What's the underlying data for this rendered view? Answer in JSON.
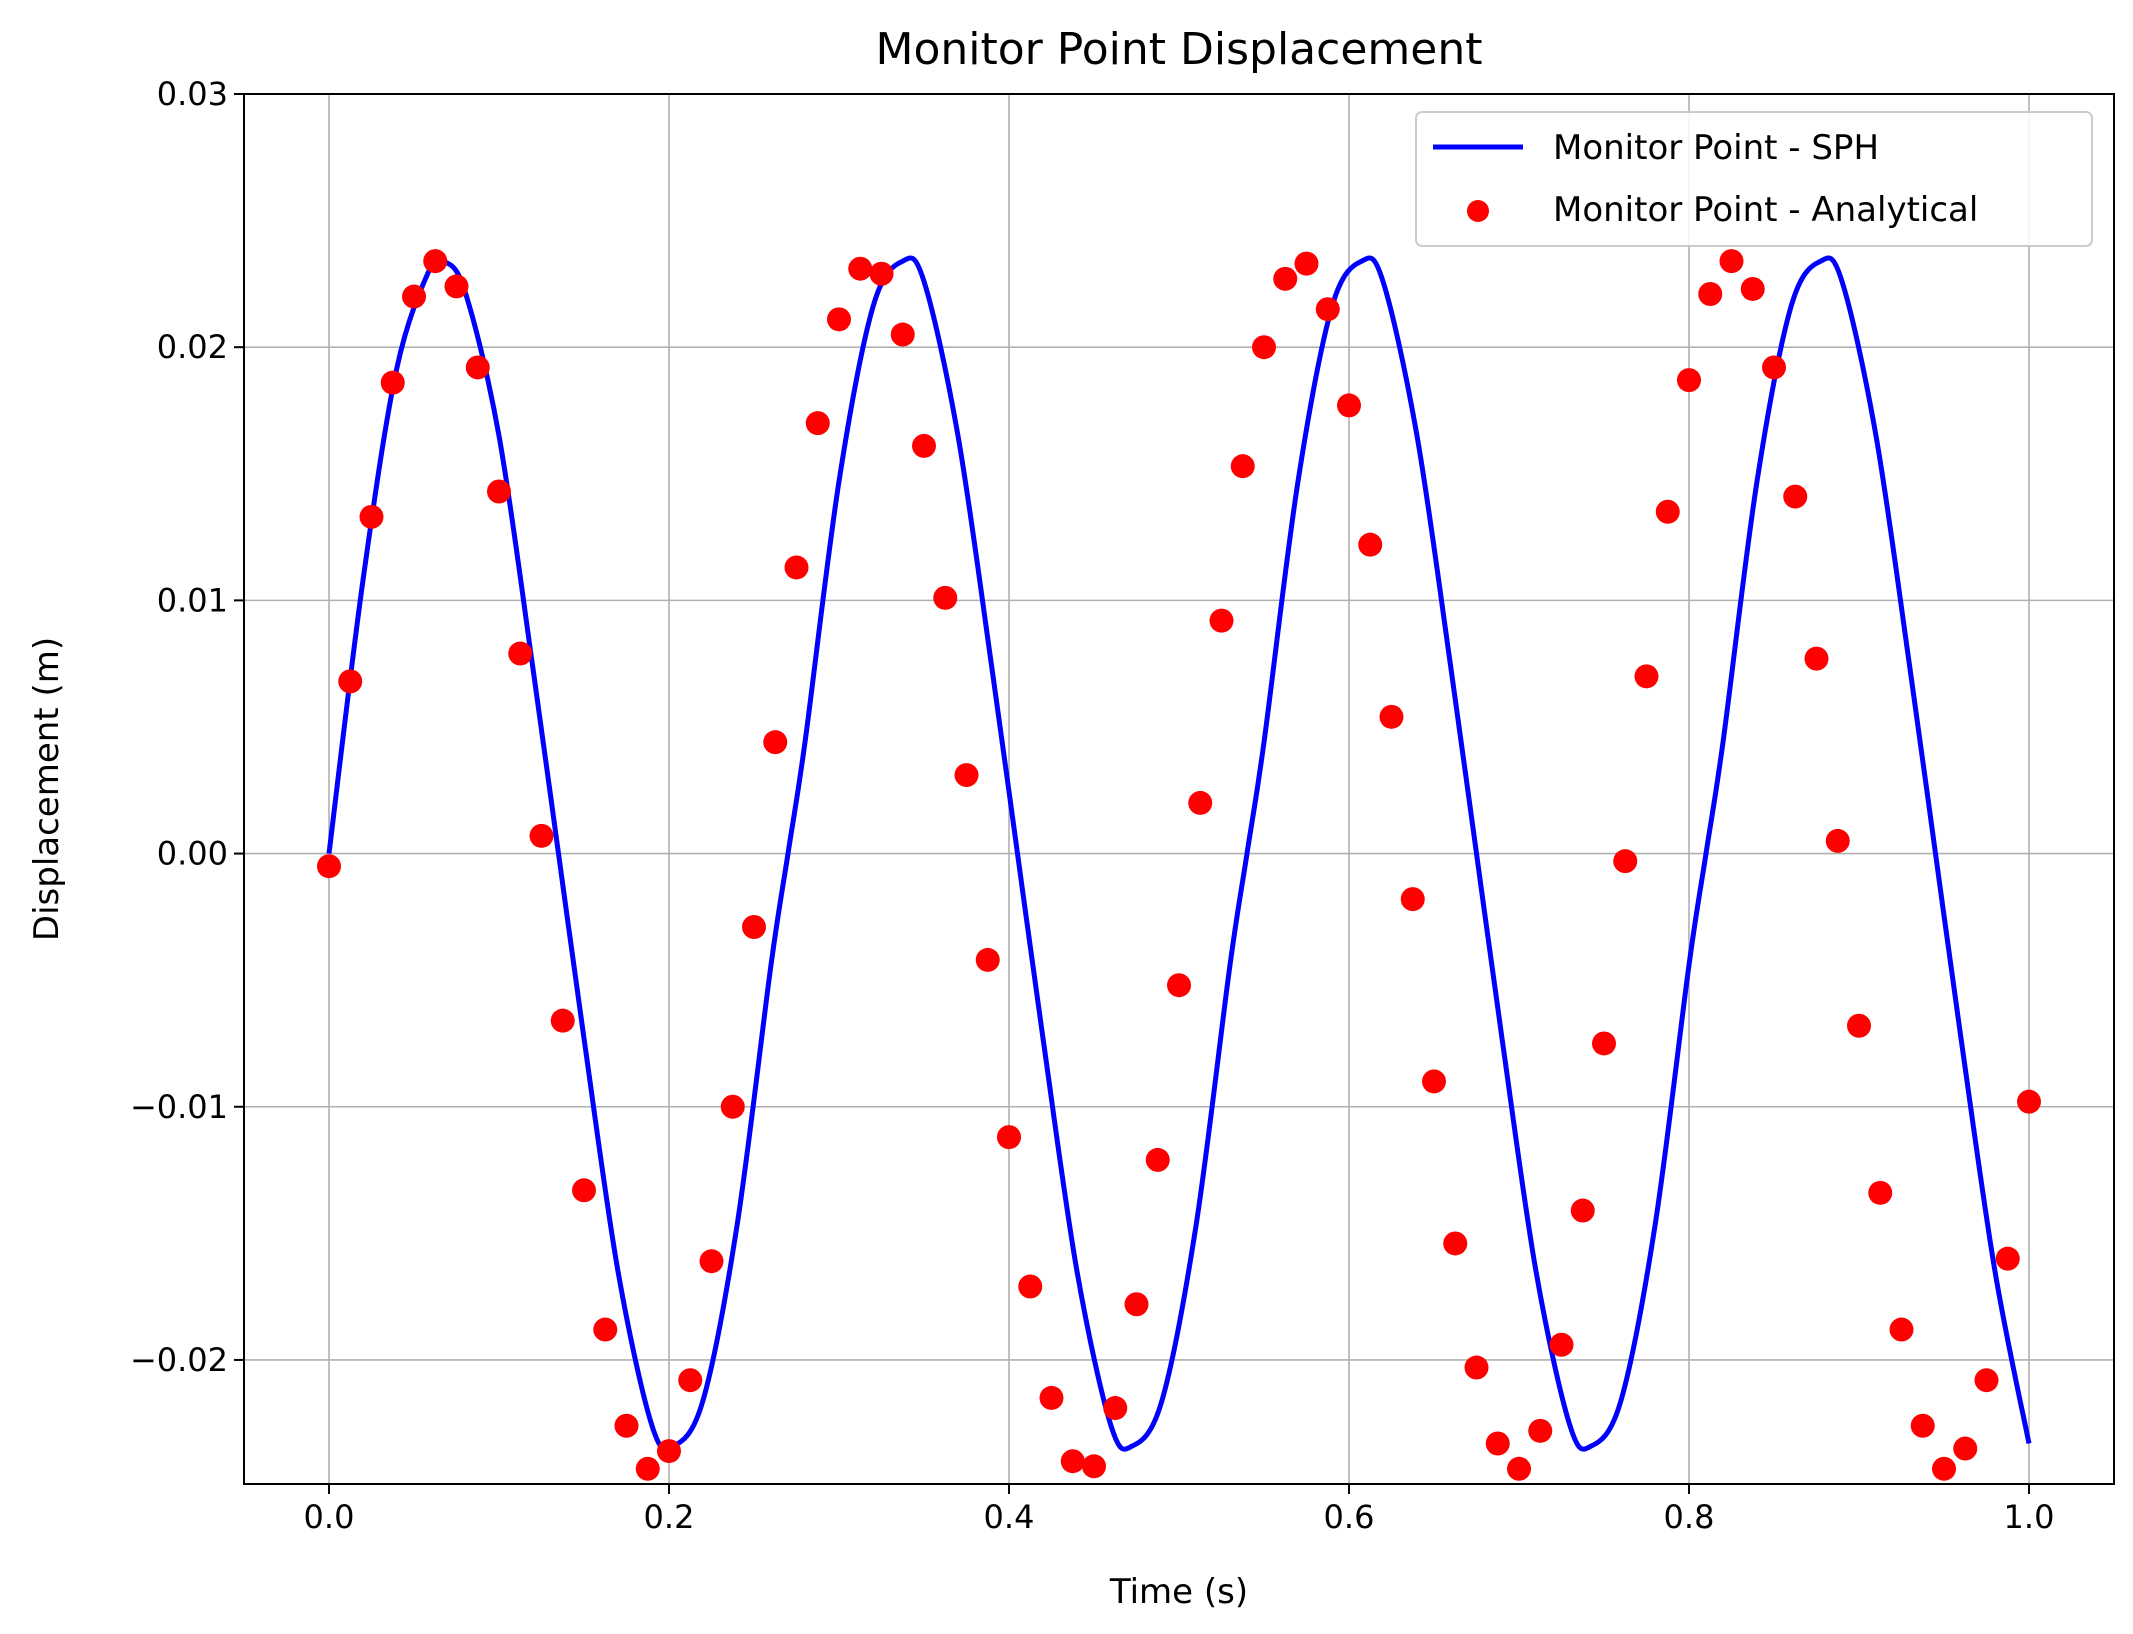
{
  "chart_data": {
    "type": "line",
    "title": "Monitor Point Displacement",
    "xlabel": "Time (s)",
    "ylabel": "Displacement (m)",
    "xlim": [
      -0.05,
      1.05
    ],
    "ylim": [
      -0.0249,
      0.03
    ],
    "xticks": [
      0.0,
      0.2,
      0.4,
      0.6,
      0.8,
      1.0
    ],
    "xtick_labels": [
      "0.0",
      "0.2",
      "0.4",
      "0.6",
      "0.8",
      "1.0"
    ],
    "yticks": [
      -0.02,
      -0.01,
      0.0,
      0.01,
      0.02,
      0.03
    ],
    "ytick_labels": [
      "−0.02",
      "−0.01",
      "0.00",
      "0.01",
      "0.02",
      "0.03"
    ],
    "grid": true,
    "legend_position": "top-right",
    "series": [
      {
        "name": "Monitor Point - SPH",
        "kind": "line",
        "color": "#0000ff",
        "x": [
          0.0,
          0.02,
          0.04,
          0.06,
          0.0675,
          0.08,
          0.1,
          0.12,
          0.135,
          0.15,
          0.17,
          0.19,
          0.2025,
          0.22,
          0.24,
          0.26,
          0.27,
          0.28,
          0.3,
          0.32,
          0.3375,
          0.35,
          0.37,
          0.39,
          0.405,
          0.42,
          0.44,
          0.46,
          0.4725,
          0.49,
          0.51,
          0.53,
          0.54,
          0.55,
          0.57,
          0.59,
          0.6075,
          0.62,
          0.64,
          0.66,
          0.675,
          0.69,
          0.71,
          0.73,
          0.7425,
          0.76,
          0.78,
          0.8,
          0.81,
          0.82,
          0.84,
          0.86,
          0.8775,
          0.89,
          0.91,
          0.93,
          0.945,
          0.96,
          0.98,
          1.0
        ],
        "y": [
          0.0,
          0.0108,
          0.0192,
          0.0232,
          0.0234,
          0.0222,
          0.0165,
          0.0073,
          0.0,
          -0.0073,
          -0.0165,
          -0.0226,
          -0.0234,
          -0.0216,
          -0.0147,
          -0.0044,
          0.0,
          0.0044,
          0.0147,
          0.0216,
          0.0234,
          0.0226,
          0.0165,
          0.0073,
          0.0,
          -0.0073,
          -0.0165,
          -0.0226,
          -0.0234,
          -0.0216,
          -0.0147,
          -0.0044,
          0.0,
          0.0044,
          0.0147,
          0.0216,
          0.0234,
          0.0226,
          0.0165,
          0.0073,
          0.0,
          -0.0073,
          -0.0165,
          -0.0226,
          -0.0234,
          -0.0216,
          -0.0147,
          -0.0044,
          0.0,
          0.0044,
          0.0147,
          0.0216,
          0.0234,
          0.0226,
          0.0165,
          0.0073,
          0.0,
          -0.0073,
          -0.0165,
          -0.0233
        ]
      },
      {
        "name": "Monitor Point - Analytical",
        "kind": "scatter",
        "color": "#ff0000",
        "x": [
          0.0,
          0.0125,
          0.025,
          0.0375,
          0.05,
          0.0625,
          0.075,
          0.0875,
          0.1,
          0.1125,
          0.125,
          0.1375,
          0.15,
          0.1625,
          0.175,
          0.1875,
          0.2,
          0.2125,
          0.225,
          0.2375,
          0.25,
          0.2625,
          0.275,
          0.2875,
          0.3,
          0.3125,
          0.325,
          0.3375,
          0.35,
          0.3625,
          0.375,
          0.3875,
          0.4,
          0.4125,
          0.425,
          0.4375,
          0.45,
          0.4625,
          0.475,
          0.4875,
          0.5,
          0.5125,
          0.525,
          0.5375,
          0.55,
          0.5625,
          0.575,
          0.5875,
          0.6,
          0.6125,
          0.625,
          0.6375,
          0.65,
          0.6625,
          0.675,
          0.6875,
          0.7,
          0.7125,
          0.725,
          0.7375,
          0.75,
          0.7625,
          0.775,
          0.7875,
          0.8,
          0.8125,
          0.825,
          0.8375,
          0.85,
          0.8625,
          0.875,
          0.8875,
          0.9,
          0.9125,
          0.925,
          0.9375,
          0.95,
          0.9625,
          0.975,
          0.9875,
          1.0
        ],
        "y": [
          -0.0005,
          0.0068,
          0.0133,
          0.0186,
          0.022,
          0.0234,
          0.0224,
          0.0192,
          0.0143,
          0.0079,
          0.0007,
          -0.0066,
          -0.0133,
          -0.0188,
          -0.0226,
          -0.0243,
          -0.0236,
          -0.0208,
          -0.0161,
          -0.01,
          -0.0029,
          0.0044,
          0.0113,
          0.017,
          0.0211,
          0.0231,
          0.0229,
          0.0205,
          0.0161,
          0.0101,
          0.0031,
          -0.0042,
          -0.0112,
          -0.0171,
          -0.0215,
          -0.024,
          -0.0242,
          -0.0219,
          -0.0178,
          -0.0121,
          -0.0052,
          0.002,
          0.0092,
          0.0153,
          0.02,
          0.0227,
          0.0233,
          0.0215,
          0.0177,
          0.0122,
          0.0054,
          -0.0018,
          -0.009,
          -0.0154,
          -0.0203,
          -0.0233,
          -0.0243,
          -0.0228,
          -0.0194,
          -0.0141,
          -0.0075,
          -0.0003,
          0.007,
          0.0135,
          0.0187,
          0.0221,
          0.0234,
          0.0223,
          0.0192,
          0.0141,
          0.0077,
          0.0005,
          -0.0068,
          -0.0134,
          -0.0188,
          -0.0226,
          -0.0243,
          -0.0235,
          -0.0208,
          -0.016,
          -0.0098
        ]
      }
    ]
  }
}
